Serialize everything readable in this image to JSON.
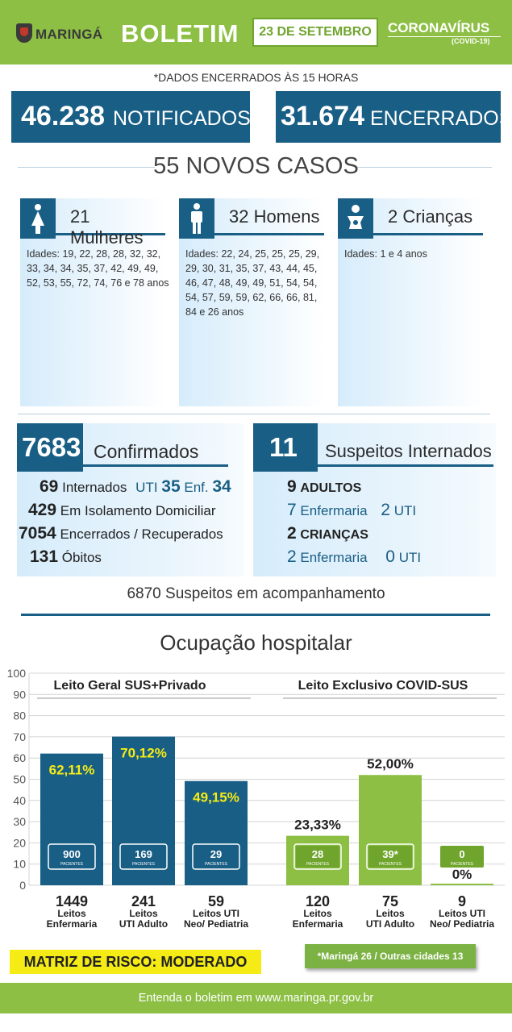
{
  "header": {
    "brand": "MARINGÁ",
    "title": "BOLETIM",
    "date": "23 DE SETEMBRO",
    "topic": "CORONAVÍRUS",
    "topic_sub": "(COVID-19)",
    "accent": "#8cbf44",
    "dark_blue": "#195e85"
  },
  "note_top": "*DADOS ENCERRADOS ÀS 15 HORAS",
  "totals": {
    "notified_number": "46.238",
    "notified_label": "NOTIFICADOS",
    "closed_number": "31.674",
    "closed_label": "ENCERRADOS"
  },
  "new_cases": {
    "title": "55 NOVOS CASOS",
    "categories": [
      {
        "icon": "woman-icon",
        "label": "21 Mulheres",
        "ages": "Idades: 19, 22, 28, 28, 32, 32, 33, 34, 34, 35, 37, 42, 49, 49, 52, 53, 55, 72, 74, 76 e 78 anos"
      },
      {
        "icon": "man-icon",
        "label": "32 Homens",
        "ages": "Idades: 22, 24, 25, 25, 25, 29, 29, 30, 31, 35, 37, 43, 44, 45, 46, 47, 48, 49, 49, 51, 54, 54, 54, 57, 59, 59, 62, 66, 66, 81, 84 e 26 anos"
      },
      {
        "icon": "baby-icon",
        "label": "2 Crianças",
        "ages": "Idades: 1 e 4 anos"
      }
    ]
  },
  "confirmed": {
    "number": "7683",
    "label": "Confirmados",
    "hospitalized_number": "69",
    "hospitalized_label": "Internados",
    "icu_label": "UTI",
    "icu_number": "35",
    "ward_label": "Enf.",
    "ward_number": "34",
    "isolation_number": "429",
    "isolation_label": "Em Isolamento Domiciliar",
    "recovered_number": "7054",
    "recovered_label": "Encerrados / Recuperados",
    "deaths_number": "131",
    "deaths_label": "Óbitos"
  },
  "suspects": {
    "number": "11",
    "label": "Suspeitos Internados",
    "adults_number": "9",
    "adults_label": "ADULTOS",
    "adults_ward_number": "7",
    "ward_label": "Enfermaria",
    "adults_icu_number": "2",
    "icu_label": "UTI",
    "children_number": "2",
    "children_label": "CRIANÇAS",
    "children_ward_number": "2",
    "children_icu_number": "0"
  },
  "monitoring": "6870 Suspeitos em acompanhamento",
  "chart_data": {
    "type": "bar",
    "title": "Ocupação hospitalar",
    "ylim": [
      0,
      100
    ],
    "yticks": [
      0,
      10,
      20,
      30,
      40,
      50,
      60,
      70,
      80,
      90,
      100
    ],
    "groups": [
      {
        "name": "Leito Geral SUS+Privado",
        "color": "#195e85",
        "bars": [
          {
            "value": 62.11,
            "label": "62,11%",
            "patients": "900",
            "beds": "1449",
            "cat1": "Leitos",
            "cat2": "Enfermaria"
          },
          {
            "value": 70.12,
            "label": "70,12%",
            "patients": "169",
            "beds": "241",
            "cat1": "Leitos",
            "cat2": "UTI Adulto"
          },
          {
            "value": 49.15,
            "label": "49,15%",
            "patients": "29",
            "beds": "59",
            "cat1": "Leitos UTI",
            "cat2": "Neo/ Pediatria"
          }
        ]
      },
      {
        "name": "Leito Exclusivo COVID-SUS",
        "color": "#8cbf44",
        "bars": [
          {
            "value": 23.33,
            "label": "23,33%",
            "patients": "28",
            "beds": "120",
            "cat1": "Leitos",
            "cat2": "Enfermaria"
          },
          {
            "value": 52.0,
            "label": "52,00%",
            "patients": "39*",
            "beds": "75",
            "cat1": "Leitos",
            "cat2": "UTI Adulto"
          },
          {
            "value": 0,
            "label": "0%",
            "patients": "0",
            "beds": "9",
            "cat1": "Leitos UTI",
            "cat2": "Neo/ Pediatria"
          }
        ]
      }
    ],
    "patients_word": "PACIENTES"
  },
  "risk": "MATRIZ DE RISCO: MODERADO",
  "footnote": "*Maringá 26 / Outras cidades 13",
  "footer": "Entenda o boletim em www.maringa.pr.gov.br"
}
